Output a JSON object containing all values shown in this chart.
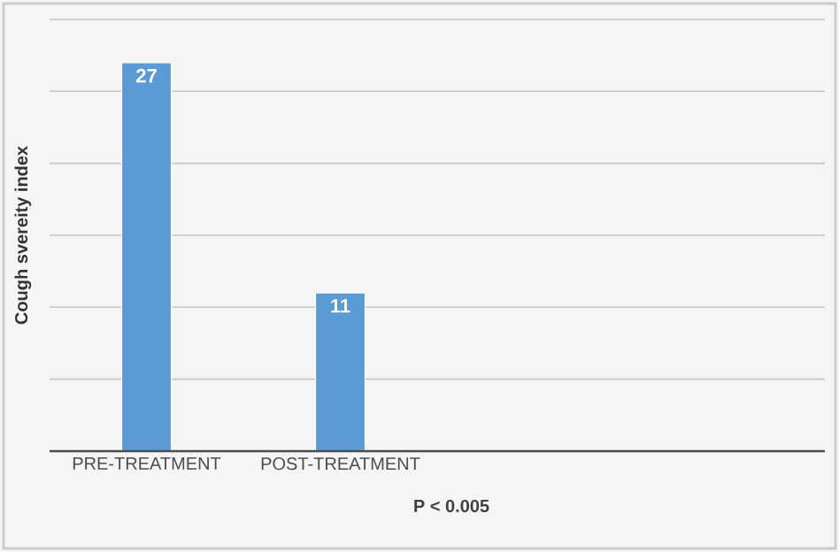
{
  "chart_data": {
    "type": "bar",
    "ylabel": "Cough svereity index",
    "categories": [
      "PRE-TREATMENT",
      "POST-TREATMENT"
    ],
    "values": [
      27,
      11
    ],
    "color": "#5b9bd5",
    "data_labels": true,
    "ylim": [
      0,
      30
    ],
    "yticks": [
      {
        "value": 0,
        "label": null
      },
      {
        "value": 5,
        "label": null
      },
      {
        "value": 10,
        "label": null
      },
      {
        "value": 15,
        "label": null
      },
      {
        "value": 20,
        "label": null
      },
      {
        "value": 25,
        "label": null
      },
      {
        "value": 30,
        "label": null
      }
    ],
    "tick_labels": "x",
    "grid": "y",
    "annotations": [
      "P < 0.005"
    ]
  }
}
